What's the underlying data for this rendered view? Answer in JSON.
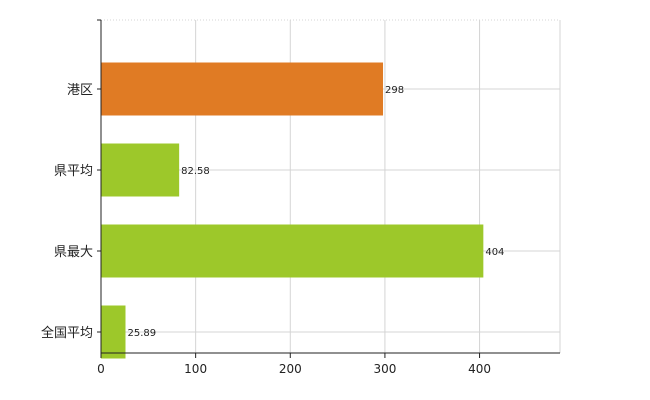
{
  "chart_data": {
    "type": "bar",
    "orientation": "horizontal",
    "categories": [
      "港区",
      "県平均",
      "県最大",
      "全国平均"
    ],
    "values": [
      298,
      82.58,
      404,
      25.89
    ],
    "value_labels": [
      "298",
      "82.58",
      "404",
      "25.89"
    ],
    "bar_colors": [
      "#e07b24",
      "#9dc82a",
      "#9dc82a",
      "#9dc82a"
    ],
    "xlim": [
      0,
      485
    ],
    "xticks": [
      0,
      100,
      200,
      300,
      400
    ],
    "xtick_labels": [
      "0",
      "100",
      "200",
      "300",
      "400"
    ],
    "grid": true,
    "legend": "none",
    "title": "",
    "xlabel": "",
    "ylabel": ""
  }
}
